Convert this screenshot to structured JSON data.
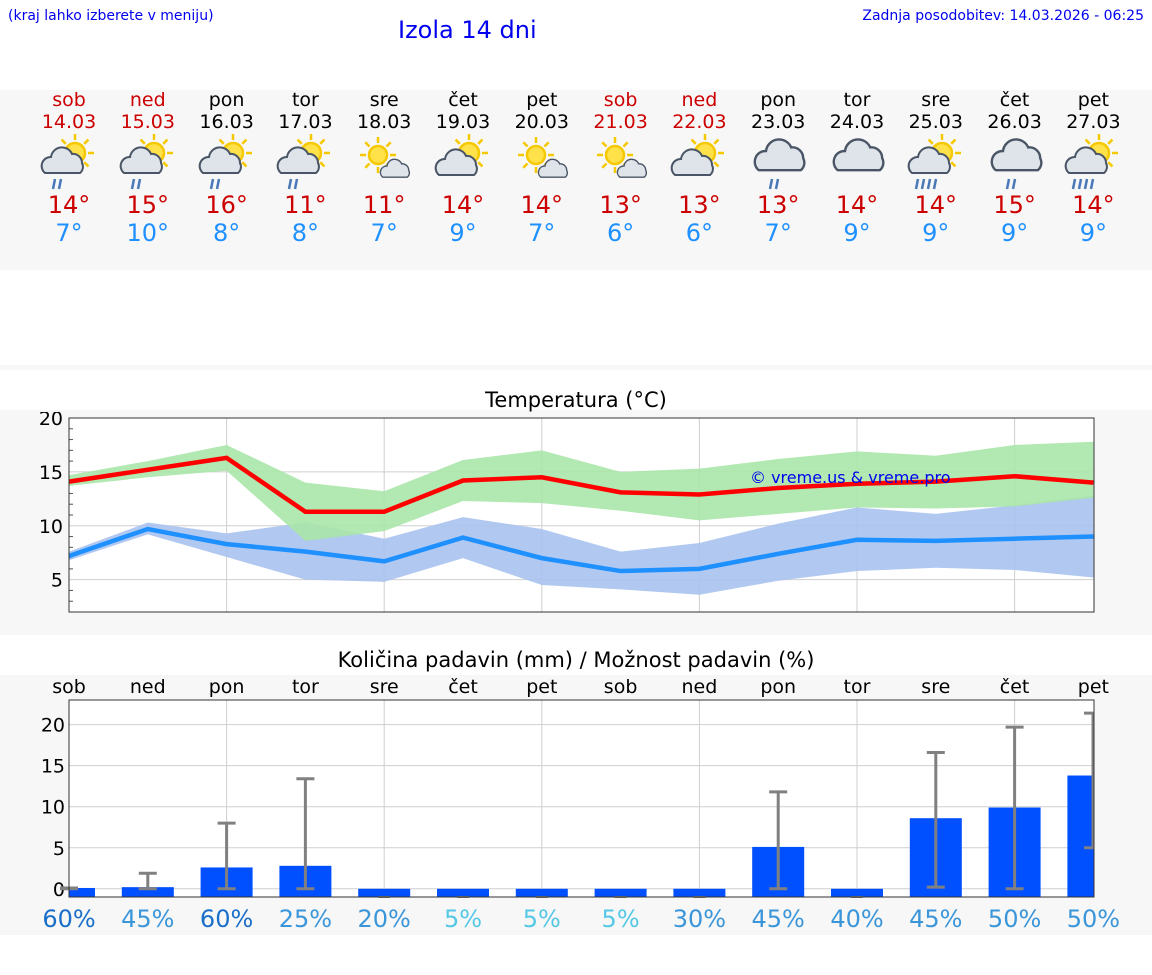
{
  "header": {
    "hint": "(kraj lahko izberete v meniju)",
    "title": "Izola 14 dni",
    "updated": "Zadnja posodobitev: 14.03.2026 - 06:25"
  },
  "days": [
    {
      "name": "sob",
      "date": "14.03",
      "hi": "14°",
      "lo": "7°",
      "weekend": true,
      "icon": "sun-cloud-rain-icon"
    },
    {
      "name": "ned",
      "date": "15.03",
      "hi": "15°",
      "lo": "10°",
      "weekend": true,
      "icon": "sun-cloud-rain-icon"
    },
    {
      "name": "pon",
      "date": "16.03",
      "hi": "16°",
      "lo": "8°",
      "weekend": false,
      "icon": "sun-cloud-rain-icon"
    },
    {
      "name": "tor",
      "date": "17.03",
      "hi": "11°",
      "lo": "8°",
      "weekend": false,
      "icon": "sun-cloud-rain-icon"
    },
    {
      "name": "sre",
      "date": "18.03",
      "hi": "11°",
      "lo": "7°",
      "weekend": false,
      "icon": "sun-small-cloud-icon"
    },
    {
      "name": "čet",
      "date": "19.03",
      "hi": "14°",
      "lo": "9°",
      "weekend": false,
      "icon": "sun-cloud-icon"
    },
    {
      "name": "pet",
      "date": "20.03",
      "hi": "14°",
      "lo": "7°",
      "weekend": false,
      "icon": "sun-small-cloud-icon"
    },
    {
      "name": "sob",
      "date": "21.03",
      "hi": "13°",
      "lo": "6°",
      "weekend": true,
      "icon": "sun-small-cloud-icon"
    },
    {
      "name": "ned",
      "date": "22.03",
      "hi": "13°",
      "lo": "6°",
      "weekend": true,
      "icon": "sun-cloud-icon"
    },
    {
      "name": "pon",
      "date": "23.03",
      "hi": "13°",
      "lo": "7°",
      "weekend": false,
      "icon": "cloud-rain-icon"
    },
    {
      "name": "tor",
      "date": "24.03",
      "hi": "14°",
      "lo": "9°",
      "weekend": false,
      "icon": "cloud-icon"
    },
    {
      "name": "sre",
      "date": "25.03",
      "hi": "14°",
      "lo": "9°",
      "weekend": false,
      "icon": "sun-cloud-heavy-rain-icon"
    },
    {
      "name": "čet",
      "date": "26.03",
      "hi": "15°",
      "lo": "9°",
      "weekend": false,
      "icon": "cloud-rain-icon"
    },
    {
      "name": "pet",
      "date": "27.03",
      "hi": "14°",
      "lo": "9°",
      "weekend": false,
      "icon": "sun-cloud-heavy-rain-icon"
    }
  ],
  "colors": {
    "max": "#ff0000",
    "min": "#1e90ff",
    "max_band": "#aae6a8",
    "min_band": "#a8c2f0",
    "bar": "#0050ff",
    "weekend": "#cc0000"
  },
  "chart_data": [
    {
      "type": "line",
      "title": "Temperatura (°C)",
      "ylim": [
        2,
        20
      ],
      "yticks": [
        5,
        10,
        15,
        20
      ],
      "watermark": "© vreme.us & vreme.pro",
      "series": [
        {
          "name": "max",
          "values": [
            14.1,
            15.2,
            16.3,
            11.3,
            11.3,
            14.2,
            14.5,
            13.1,
            12.9,
            13.5,
            13.9,
            14.1,
            14.6,
            14.0
          ],
          "band_low": [
            13.7,
            14.5,
            15.1,
            8.6,
            9.5,
            12.3,
            12.1,
            11.4,
            10.5,
            11.1,
            11.7,
            11.6,
            11.8,
            12.6
          ],
          "band_high": [
            14.7,
            16.0,
            17.5,
            14.0,
            13.2,
            16.1,
            17.0,
            15.0,
            15.3,
            16.2,
            16.9,
            16.5,
            17.5,
            17.8
          ]
        },
        {
          "name": "min",
          "values": [
            7.2,
            9.7,
            8.3,
            7.6,
            6.7,
            8.9,
            7.0,
            5.8,
            6.0,
            7.4,
            8.7,
            8.6,
            8.8,
            9.0
          ],
          "band_low": [
            6.8,
            9.2,
            7.1,
            5.0,
            4.8,
            7.0,
            4.5,
            4.1,
            3.6,
            4.9,
            5.8,
            6.1,
            5.9,
            5.2
          ],
          "band_high": [
            7.6,
            10.3,
            9.3,
            10.3,
            8.8,
            10.8,
            9.7,
            7.6,
            8.4,
            10.2,
            11.7,
            11.1,
            11.9,
            12.8
          ]
        }
      ]
    },
    {
      "type": "bar",
      "title": "Količina padavin (mm) / Možnost padavin (%)",
      "categories": [
        "sob",
        "ned",
        "pon",
        "tor",
        "sre",
        "čet",
        "pet",
        "sob",
        "ned",
        "pon",
        "tor",
        "sre",
        "čet",
        "pet"
      ],
      "ylim": [
        -1,
        23
      ],
      "yticks": [
        0,
        5,
        10,
        15,
        20
      ],
      "values": [
        0.1,
        0.2,
        2.6,
        2.8,
        0,
        0,
        0,
        0,
        0,
        5.1,
        0,
        8.6,
        9.9,
        13.8
      ],
      "err_low": [
        0,
        0,
        0,
        0,
        0,
        0,
        0,
        0,
        0,
        0,
        0,
        0.2,
        0,
        5.0
      ],
      "err_high": [
        0.1,
        1.9,
        8.0,
        13.4,
        0,
        0,
        0,
        0,
        0,
        11.8,
        0,
        16.6,
        19.7,
        21.4
      ],
      "probability": [
        "60%",
        "45%",
        "60%",
        "25%",
        "20%",
        "5%",
        "5%",
        "5%",
        "30%",
        "45%",
        "40%",
        "45%",
        "50%",
        "50%"
      ],
      "probability_colors": [
        "#1b6fc8",
        "#3b96d9",
        "#1b6fc8",
        "#3b96d9",
        "#3b96d9",
        "#55c8e6",
        "#55c8e6",
        "#55c8e6",
        "#3b96d9",
        "#3b96d9",
        "#3b96d9",
        "#3b96d9",
        "#3b96d9",
        "#3b96d9"
      ]
    }
  ]
}
